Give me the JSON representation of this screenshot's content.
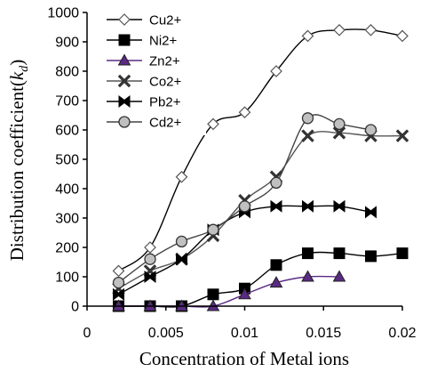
{
  "chart_data": {
    "type": "line",
    "xlabel": "Concentration of Metal ions",
    "ylabel_main": "Distribution coefficient(",
    "ylabel_symbol": "k",
    "ylabel_sub": "d",
    "ylabel_close": ")",
    "xlim": [
      0,
      0.02
    ],
    "ylim": [
      0,
      1000
    ],
    "xticks": [
      {
        "value": 0,
        "label": "0"
      },
      {
        "value": 0.005,
        "label": "0.005"
      },
      {
        "value": 0.01,
        "label": "0.01"
      },
      {
        "value": 0.015,
        "label": "0.015"
      },
      {
        "value": 0.02,
        "label": "0.02"
      }
    ],
    "yticks": [
      {
        "value": 0,
        "label": "0"
      },
      {
        "value": 100,
        "label": "100"
      },
      {
        "value": 200,
        "label": "200"
      },
      {
        "value": 300,
        "label": "300"
      },
      {
        "value": 400,
        "label": "400"
      },
      {
        "value": 500,
        "label": "500"
      },
      {
        "value": 600,
        "label": "600"
      },
      {
        "value": 700,
        "label": "700"
      },
      {
        "value": 800,
        "label": "800"
      },
      {
        "value": 900,
        "label": "900"
      },
      {
        "value": 1000,
        "label": "1000"
      }
    ],
    "grid": false,
    "legend_position": "top-left",
    "series": [
      {
        "name": "Cu2+",
        "marker": "diamond",
        "marker_fill": "#ffffff",
        "line_color": "#000000",
        "x": [
          0.002,
          0.004,
          0.006,
          0.008,
          0.01,
          0.012,
          0.014,
          0.016,
          0.018,
          0.02
        ],
        "y": [
          120,
          200,
          440,
          620,
          660,
          800,
          920,
          940,
          940,
          920
        ]
      },
      {
        "name": "Ni2+",
        "marker": "square",
        "marker_fill": "#000000",
        "line_color": "#000000",
        "x": [
          0.002,
          0.004,
          0.006,
          0.008,
          0.01,
          0.012,
          0.014,
          0.016,
          0.018,
          0.02
        ],
        "y": [
          0,
          0,
          0,
          40,
          60,
          140,
          180,
          180,
          170,
          180
        ]
      },
      {
        "name": "Zn2+",
        "marker": "triangle",
        "marker_fill": "#5a2a82",
        "line_color": "#5a2a82",
        "x": [
          0.002,
          0.004,
          0.006,
          0.008,
          0.01,
          0.012,
          0.014,
          0.016
        ],
        "y": [
          0,
          0,
          0,
          0,
          40,
          80,
          100,
          100
        ]
      },
      {
        "name": "Co2+",
        "marker": "x",
        "marker_fill": "#333333",
        "line_color": "#555555",
        "x": [
          0.002,
          0.004,
          0.006,
          0.008,
          0.01,
          0.012,
          0.014,
          0.016,
          0.018,
          0.02
        ],
        "y": [
          60,
          120,
          160,
          240,
          360,
          440,
          580,
          590,
          580,
          580
        ]
      },
      {
        "name": "Pb2+",
        "marker": "bowtie",
        "marker_fill": "#000000",
        "line_color": "#000000",
        "x": [
          0.002,
          0.004,
          0.006,
          0.008,
          0.01,
          0.012,
          0.014,
          0.016,
          0.018
        ],
        "y": [
          40,
          100,
          160,
          260,
          320,
          340,
          340,
          340,
          320
        ]
      },
      {
        "name": "Cd2+",
        "marker": "circle",
        "marker_fill": "#c0c0c0",
        "line_color": "#444444",
        "x": [
          0.002,
          0.004,
          0.006,
          0.008,
          0.01,
          0.012,
          0.014,
          0.016,
          0.018
        ],
        "y": [
          80,
          160,
          220,
          260,
          340,
          420,
          640,
          620,
          600
        ]
      }
    ]
  }
}
